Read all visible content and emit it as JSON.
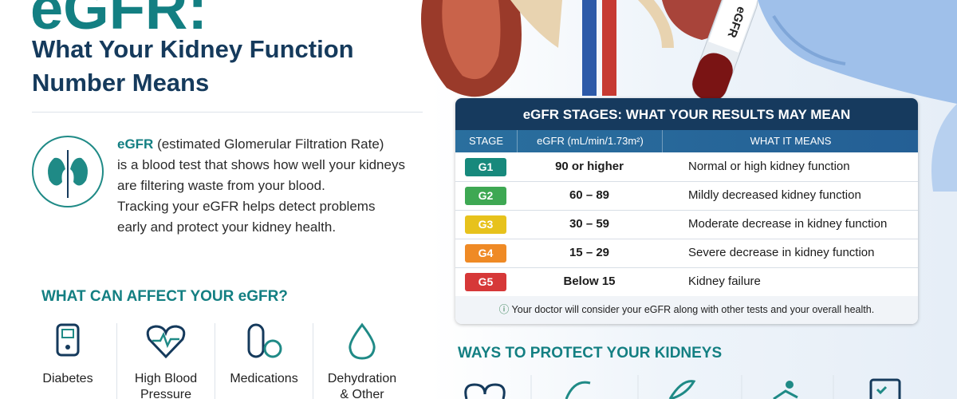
{
  "header": {
    "title": "eGFR:",
    "subtitle_lines": [
      "What Your Kidney Function",
      "Number Means"
    ]
  },
  "intro": {
    "term": "eGFR",
    "lines": [
      " (estimated Glomerular Filtration Rate)",
      "is a blood test that shows how well your kidneys",
      "are filtering waste from your blood.",
      "Tracking your eGFR helps detect problems",
      "early and protect your kidney health."
    ]
  },
  "image": {
    "tube_label": "eGFR"
  },
  "factors": {
    "heading": "WHAT CAN AFFECT YOUR eGFR?",
    "items": [
      [
        "Diabetes"
      ],
      [
        "High Blood",
        "Pressure"
      ],
      [
        "Medications"
      ],
      [
        "Dehydration",
        "& Other"
      ]
    ]
  },
  "table": {
    "title": "eGFR STAGES: WHAT YOUR RESULTS MAY MEAN",
    "headers": [
      "STAGE",
      "eGFR (mL/min/1.73m²)",
      "WHAT IT MEANS"
    ],
    "rows": [
      [
        "G1",
        "90 or higher",
        "Normal or high kidney function"
      ],
      [
        "G2",
        "60 – 89",
        "Mildly decreased kidney function"
      ],
      [
        "G3",
        "30 – 59",
        "Moderate decrease in kidney function"
      ],
      [
        "G4",
        "15 – 29",
        "Severe decrease in kidney function"
      ],
      [
        "G5",
        "Below 15",
        "Kidney failure"
      ]
    ],
    "note": "Your doctor will consider your eGFR along with other tests and your overall health."
  },
  "protect": {
    "heading": "WAYS TO PROTECT YOUR KIDNEYS"
  }
}
